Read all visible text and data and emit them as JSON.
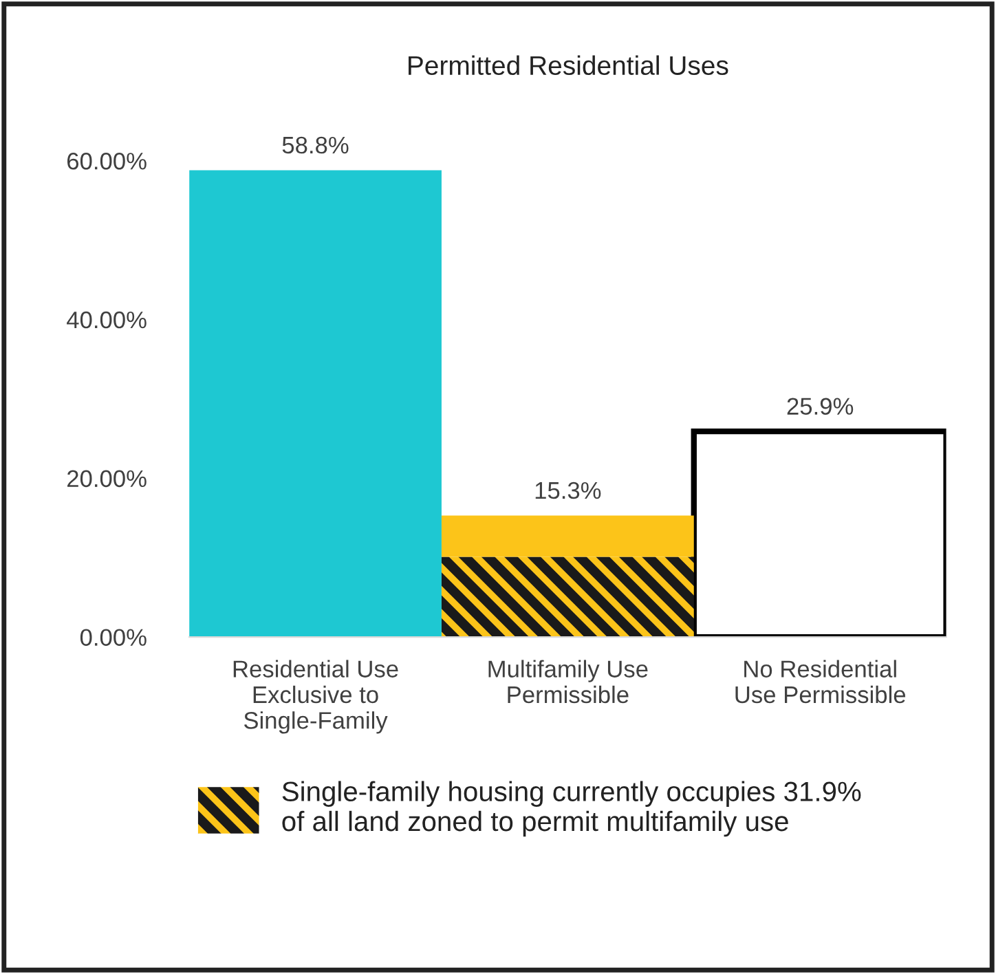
{
  "chart_data": {
    "type": "bar",
    "title": "Permitted Residential Uses",
    "categories": [
      "Residential Use\nExclusive to\nSingle-Family",
      "Multifamily Use\nPermissible",
      "No Residential\nUse Permissible"
    ],
    "stacked": true,
    "series": [
      {
        "colors": [
          "#1ec8d2",
          null,
          "#ffffff"
        ],
        "values": [
          58.8,
          null,
          25.9
        ]
      },
      {
        "name": "Single-family housing currently occupies 31.9%\nof all land zoned to permit multifamily use",
        "color": "#1a1a1a",
        "values": [
          null,
          10.1,
          null
        ]
      },
      {
        "color": "#fcc419",
        "values": [
          null,
          5.2,
          null
        ]
      }
    ],
    "totals": [
      "58.8%",
      "15.3%",
      "25.9%"
    ],
    "ylim": [
      0,
      60
    ],
    "yticks": [
      {
        "value": 0,
        "label": "0.00%"
      },
      {
        "value": 20,
        "label": "20.00%"
      },
      {
        "value": 40,
        "label": "40.00%"
      },
      {
        "value": 60,
        "label": "60.00%"
      }
    ],
    "grid": false,
    "legend": "bottom"
  }
}
